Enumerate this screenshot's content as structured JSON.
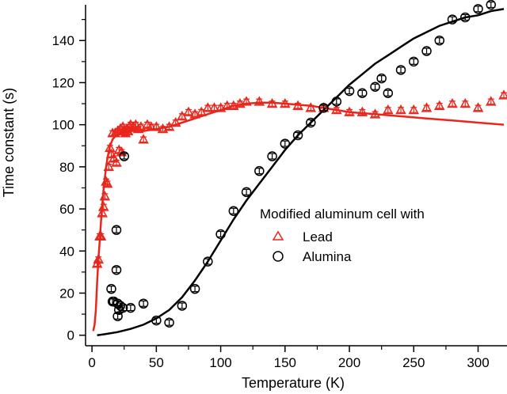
{
  "chart_data": {
    "type": "scatter",
    "xlabel": "Temperature (K)",
    "ylabel": "Time constant (s)",
    "xlim": [
      -5,
      320
    ],
    "ylim": [
      -5,
      157
    ],
    "xticks": [
      0,
      50,
      100,
      150,
      200,
      250,
      300
    ],
    "yticks": [
      0,
      20,
      40,
      60,
      80,
      100,
      120,
      140
    ],
    "grid": false,
    "legend": {
      "title": "Modified aluminum cell with",
      "placement": "center-right",
      "entries": [
        {
          "label": "Lead",
          "marker": "triangle",
          "color": "#e8261c"
        },
        {
          "label": "Alumina",
          "marker": "circle",
          "color": "#000000"
        }
      ]
    },
    "series": [
      {
        "name": "Lead",
        "kind": "points",
        "marker": "triangle",
        "color": "#e8261c",
        "error": 1.2,
        "x": [
          4,
          5,
          6,
          7,
          8,
          9,
          10,
          11,
          12,
          13,
          14,
          15,
          16,
          17,
          18,
          19,
          20,
          21,
          22,
          23,
          24,
          25,
          26,
          27,
          28,
          29,
          30,
          32,
          34,
          36,
          38,
          40,
          43,
          46,
          50,
          55,
          60,
          65,
          70,
          75,
          80,
          85,
          90,
          95,
          100,
          105,
          110,
          115,
          120,
          130,
          140,
          150,
          160,
          170,
          180,
          190,
          200,
          210,
          220,
          230,
          240,
          250,
          260,
          270,
          280,
          290,
          300,
          310,
          320
        ],
        "y": [
          34,
          36,
          47,
          47,
          58,
          61,
          66,
          73,
          72,
          80,
          89,
          86,
          96,
          84,
          96,
          82,
          97,
          88,
          98,
          87,
          99,
          97,
          96,
          98,
          97,
          99,
          100,
          99,
          100,
          98,
          99,
          93,
          100,
          99,
          99,
          98,
          99,
          101,
          104,
          106,
          105,
          106,
          108,
          108,
          108,
          109,
          109,
          110,
          111,
          111,
          110,
          110,
          109,
          108,
          108,
          107,
          106,
          106,
          105,
          107,
          107,
          107,
          108,
          109,
          110,
          110,
          108,
          111,
          114
        ]
      },
      {
        "name": "Alumina",
        "kind": "points",
        "marker": "circle",
        "color": "#000000",
        "error": 1.3,
        "x": [
          15,
          16,
          17,
          19,
          19,
          20,
          20,
          21,
          22,
          24,
          25,
          30,
          40,
          50,
          60,
          70,
          80,
          90,
          100,
          110,
          120,
          130,
          140,
          150,
          160,
          170,
          180,
          190,
          200,
          210,
          220,
          225,
          230,
          240,
          250,
          260,
          270,
          280,
          290,
          300,
          310
        ],
        "y": [
          22,
          16,
          16,
          50,
          31,
          15,
          9,
          12,
          14,
          13,
          85,
          13,
          15,
          7,
          6,
          14,
          22,
          35,
          48,
          59,
          68,
          78,
          85,
          91,
          95,
          101,
          108,
          111,
          116,
          115,
          118,
          122,
          115,
          126,
          130,
          135,
          140,
          150,
          151,
          155,
          157
        ]
      },
      {
        "name": "Lead fit",
        "kind": "line",
        "color": "#e8261c",
        "x": [
          1,
          2,
          3,
          4,
          5,
          6,
          7,
          8,
          9,
          10,
          11,
          12,
          13,
          14,
          16,
          18,
          20,
          22,
          25,
          30,
          35,
          40,
          50,
          60,
          70,
          80,
          90,
          100,
          110,
          120,
          130,
          140,
          150,
          160,
          170,
          180,
          190,
          200,
          220,
          240,
          260,
          280,
          300,
          320
        ],
        "y": [
          2,
          5,
          12,
          25,
          36,
          45,
          54,
          62,
          69,
          75,
          80,
          84,
          87,
          90,
          93,
          94.5,
          95.5,
          96,
          96.5,
          97,
          97,
          97,
          98,
          99,
          101,
          103,
          105,
          107,
          109,
          110,
          110.5,
          110.5,
          110,
          109.5,
          109,
          108,
          107,
          106,
          105,
          104,
          103,
          102,
          101,
          100
        ]
      },
      {
        "name": "Alumina fit",
        "kind": "line",
        "color": "#000000",
        "x": [
          4,
          10,
          20,
          30,
          40,
          50,
          60,
          70,
          80,
          90,
          100,
          110,
          120,
          130,
          140,
          150,
          160,
          170,
          180,
          190,
          200,
          210,
          220,
          230,
          240,
          250,
          260,
          270,
          280,
          290,
          300,
          310,
          320
        ],
        "y": [
          0,
          0.5,
          1.5,
          3,
          5,
          8,
          12,
          18,
          26,
          35,
          45,
          55,
          64,
          72,
          80,
          88,
          95,
          101,
          107,
          113,
          119,
          124,
          129,
          133,
          137,
          141,
          144,
          147,
          149,
          151,
          152,
          154,
          155
        ]
      }
    ]
  }
}
